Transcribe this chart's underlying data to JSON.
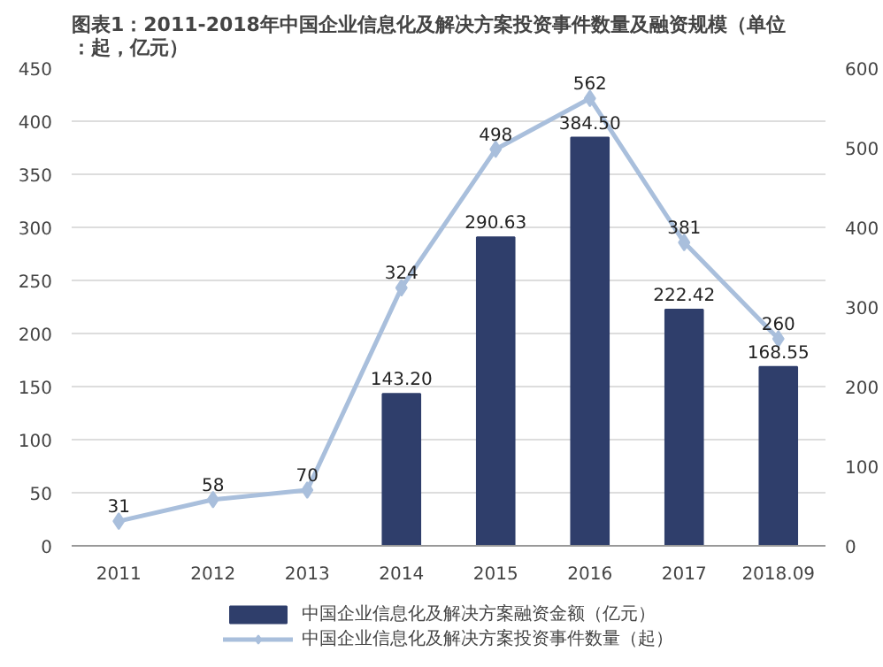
{
  "chart_data": {
    "type": "bar",
    "title": "图表1：2011-2018年中国企业信息化及解决方案投资事件数量及融资规模（单位：起，亿元）",
    "categories": [
      "2011",
      "2012",
      "2013",
      "2014",
      "2015",
      "2016",
      "2017",
      "2018.09"
    ],
    "series": [
      {
        "name": "中国企业信息化及解决方案融资金额（亿元）",
        "color": "#2f3e6b",
        "values": [
          null,
          null,
          null,
          143.2,
          290.63,
          384.5,
          222.42,
          168.55
        ],
        "value_labels": [
          null,
          null,
          null,
          "143.20",
          "290.63",
          "384.50",
          "222.42",
          "168.55"
        ]
      },
      {
        "name": "中国企业信息化及解决方案投资事件数量（起）",
        "type": "line",
        "axis": "y2",
        "color": "#a9bfdc",
        "marker": "diamond",
        "data_labels": true,
        "values": [
          31,
          58,
          70,
          324,
          498,
          562,
          381,
          260
        ]
      }
    ],
    "ylim": [
      0,
      450
    ],
    "yticks": [
      0,
      50,
      100,
      150,
      200,
      250,
      300,
      350,
      400,
      450
    ],
    "y2lim": [
      0,
      600
    ],
    "y2ticks": [
      0,
      100,
      200,
      300,
      400,
      500,
      600
    ],
    "grid": "y",
    "legend": "bottom"
  }
}
